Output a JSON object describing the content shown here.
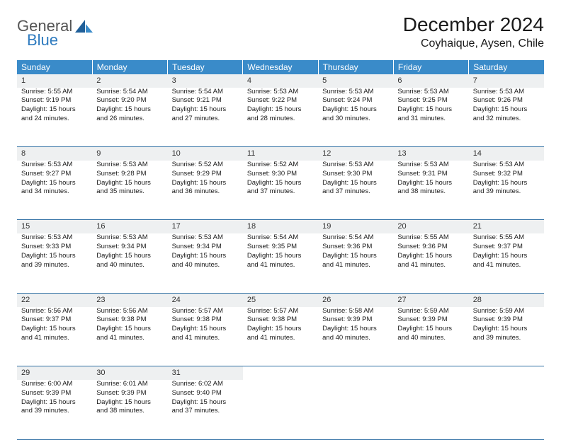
{
  "brand": {
    "word1": "General",
    "word2": "Blue"
  },
  "title": "December 2024",
  "location": "Coyhaique, Aysen, Chile",
  "colors": {
    "header_bg": "#3a8bc9",
    "header_text": "#ffffff",
    "daynum_bg": "#eef0f1",
    "row_border": "#2f6fa3",
    "brand_gray": "#555555",
    "brand_blue": "#2f7bbf"
  },
  "day_headers": [
    "Sunday",
    "Monday",
    "Tuesday",
    "Wednesday",
    "Thursday",
    "Friday",
    "Saturday"
  ],
  "weeks": [
    [
      {
        "n": "1",
        "sr": "Sunrise: 5:55 AM",
        "ss": "Sunset: 9:19 PM",
        "d1": "Daylight: 15 hours",
        "d2": "and 24 minutes."
      },
      {
        "n": "2",
        "sr": "Sunrise: 5:54 AM",
        "ss": "Sunset: 9:20 PM",
        "d1": "Daylight: 15 hours",
        "d2": "and 26 minutes."
      },
      {
        "n": "3",
        "sr": "Sunrise: 5:54 AM",
        "ss": "Sunset: 9:21 PM",
        "d1": "Daylight: 15 hours",
        "d2": "and 27 minutes."
      },
      {
        "n": "4",
        "sr": "Sunrise: 5:53 AM",
        "ss": "Sunset: 9:22 PM",
        "d1": "Daylight: 15 hours",
        "d2": "and 28 minutes."
      },
      {
        "n": "5",
        "sr": "Sunrise: 5:53 AM",
        "ss": "Sunset: 9:24 PM",
        "d1": "Daylight: 15 hours",
        "d2": "and 30 minutes."
      },
      {
        "n": "6",
        "sr": "Sunrise: 5:53 AM",
        "ss": "Sunset: 9:25 PM",
        "d1": "Daylight: 15 hours",
        "d2": "and 31 minutes."
      },
      {
        "n": "7",
        "sr": "Sunrise: 5:53 AM",
        "ss": "Sunset: 9:26 PM",
        "d1": "Daylight: 15 hours",
        "d2": "and 32 minutes."
      }
    ],
    [
      {
        "n": "8",
        "sr": "Sunrise: 5:53 AM",
        "ss": "Sunset: 9:27 PM",
        "d1": "Daylight: 15 hours",
        "d2": "and 34 minutes."
      },
      {
        "n": "9",
        "sr": "Sunrise: 5:53 AM",
        "ss": "Sunset: 9:28 PM",
        "d1": "Daylight: 15 hours",
        "d2": "and 35 minutes."
      },
      {
        "n": "10",
        "sr": "Sunrise: 5:52 AM",
        "ss": "Sunset: 9:29 PM",
        "d1": "Daylight: 15 hours",
        "d2": "and 36 minutes."
      },
      {
        "n": "11",
        "sr": "Sunrise: 5:52 AM",
        "ss": "Sunset: 9:30 PM",
        "d1": "Daylight: 15 hours",
        "d2": "and 37 minutes."
      },
      {
        "n": "12",
        "sr": "Sunrise: 5:53 AM",
        "ss": "Sunset: 9:30 PM",
        "d1": "Daylight: 15 hours",
        "d2": "and 37 minutes."
      },
      {
        "n": "13",
        "sr": "Sunrise: 5:53 AM",
        "ss": "Sunset: 9:31 PM",
        "d1": "Daylight: 15 hours",
        "d2": "and 38 minutes."
      },
      {
        "n": "14",
        "sr": "Sunrise: 5:53 AM",
        "ss": "Sunset: 9:32 PM",
        "d1": "Daylight: 15 hours",
        "d2": "and 39 minutes."
      }
    ],
    [
      {
        "n": "15",
        "sr": "Sunrise: 5:53 AM",
        "ss": "Sunset: 9:33 PM",
        "d1": "Daylight: 15 hours",
        "d2": "and 39 minutes."
      },
      {
        "n": "16",
        "sr": "Sunrise: 5:53 AM",
        "ss": "Sunset: 9:34 PM",
        "d1": "Daylight: 15 hours",
        "d2": "and 40 minutes."
      },
      {
        "n": "17",
        "sr": "Sunrise: 5:53 AM",
        "ss": "Sunset: 9:34 PM",
        "d1": "Daylight: 15 hours",
        "d2": "and 40 minutes."
      },
      {
        "n": "18",
        "sr": "Sunrise: 5:54 AM",
        "ss": "Sunset: 9:35 PM",
        "d1": "Daylight: 15 hours",
        "d2": "and 41 minutes."
      },
      {
        "n": "19",
        "sr": "Sunrise: 5:54 AM",
        "ss": "Sunset: 9:36 PM",
        "d1": "Daylight: 15 hours",
        "d2": "and 41 minutes."
      },
      {
        "n": "20",
        "sr": "Sunrise: 5:55 AM",
        "ss": "Sunset: 9:36 PM",
        "d1": "Daylight: 15 hours",
        "d2": "and 41 minutes."
      },
      {
        "n": "21",
        "sr": "Sunrise: 5:55 AM",
        "ss": "Sunset: 9:37 PM",
        "d1": "Daylight: 15 hours",
        "d2": "and 41 minutes."
      }
    ],
    [
      {
        "n": "22",
        "sr": "Sunrise: 5:56 AM",
        "ss": "Sunset: 9:37 PM",
        "d1": "Daylight: 15 hours",
        "d2": "and 41 minutes."
      },
      {
        "n": "23",
        "sr": "Sunrise: 5:56 AM",
        "ss": "Sunset: 9:38 PM",
        "d1": "Daylight: 15 hours",
        "d2": "and 41 minutes."
      },
      {
        "n": "24",
        "sr": "Sunrise: 5:57 AM",
        "ss": "Sunset: 9:38 PM",
        "d1": "Daylight: 15 hours",
        "d2": "and 41 minutes."
      },
      {
        "n": "25",
        "sr": "Sunrise: 5:57 AM",
        "ss": "Sunset: 9:38 PM",
        "d1": "Daylight: 15 hours",
        "d2": "and 41 minutes."
      },
      {
        "n": "26",
        "sr": "Sunrise: 5:58 AM",
        "ss": "Sunset: 9:39 PM",
        "d1": "Daylight: 15 hours",
        "d2": "and 40 minutes."
      },
      {
        "n": "27",
        "sr": "Sunrise: 5:59 AM",
        "ss": "Sunset: 9:39 PM",
        "d1": "Daylight: 15 hours",
        "d2": "and 40 minutes."
      },
      {
        "n": "28",
        "sr": "Sunrise: 5:59 AM",
        "ss": "Sunset: 9:39 PM",
        "d1": "Daylight: 15 hours",
        "d2": "and 39 minutes."
      }
    ],
    [
      {
        "n": "29",
        "sr": "Sunrise: 6:00 AM",
        "ss": "Sunset: 9:39 PM",
        "d1": "Daylight: 15 hours",
        "d2": "and 39 minutes."
      },
      {
        "n": "30",
        "sr": "Sunrise: 6:01 AM",
        "ss": "Sunset: 9:39 PM",
        "d1": "Daylight: 15 hours",
        "d2": "and 38 minutes."
      },
      {
        "n": "31",
        "sr": "Sunrise: 6:02 AM",
        "ss": "Sunset: 9:40 PM",
        "d1": "Daylight: 15 hours",
        "d2": "and 37 minutes."
      },
      null,
      null,
      null,
      null
    ]
  ]
}
